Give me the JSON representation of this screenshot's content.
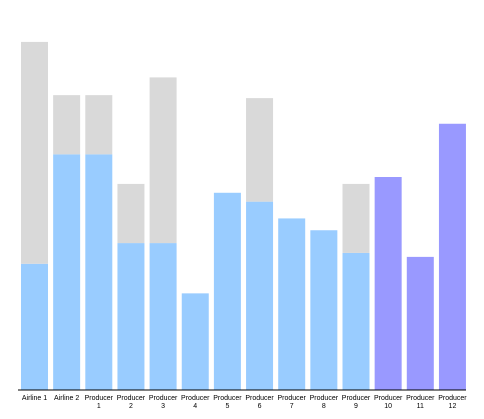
{
  "chart_data": {
    "type": "bar",
    "stacked": true,
    "categories": [
      [
        "Airline 1"
      ],
      [
        "Airline 2"
      ],
      [
        "Producer",
        "1"
      ],
      [
        "Producer",
        "2"
      ],
      [
        "Producer",
        "3"
      ],
      [
        "Producer",
        "4"
      ],
      [
        "Producer",
        "5"
      ],
      [
        "Producer",
        "6"
      ],
      [
        "Producer",
        "7"
      ],
      [
        "Producer",
        "8"
      ],
      [
        "Producer",
        "9"
      ],
      [
        "Producer",
        "10"
      ],
      [
        "Producer",
        "11"
      ],
      [
        "Producer",
        "12"
      ]
    ],
    "series": [
      {
        "color": "#99ccff",
        "values": [
          128,
          239,
          239,
          149,
          149,
          98,
          200,
          191,
          174,
          162,
          139,
          0,
          0,
          0
        ]
      },
      {
        "color": "#9999ff",
        "values": [
          0,
          0,
          0,
          0,
          0,
          0,
          0,
          0,
          0,
          0,
          0,
          216,
          135,
          270
        ]
      },
      {
        "color": "#d9d9d9",
        "values": [
          225,
          60,
          60,
          60,
          168,
          0,
          0,
          105,
          0,
          0,
          70,
          0,
          0,
          0
        ]
      }
    ],
    "ylim": [
      0,
      360
    ],
    "grid": false,
    "legend": "none",
    "title": "",
    "xlabel": "",
    "ylabel": ""
  }
}
